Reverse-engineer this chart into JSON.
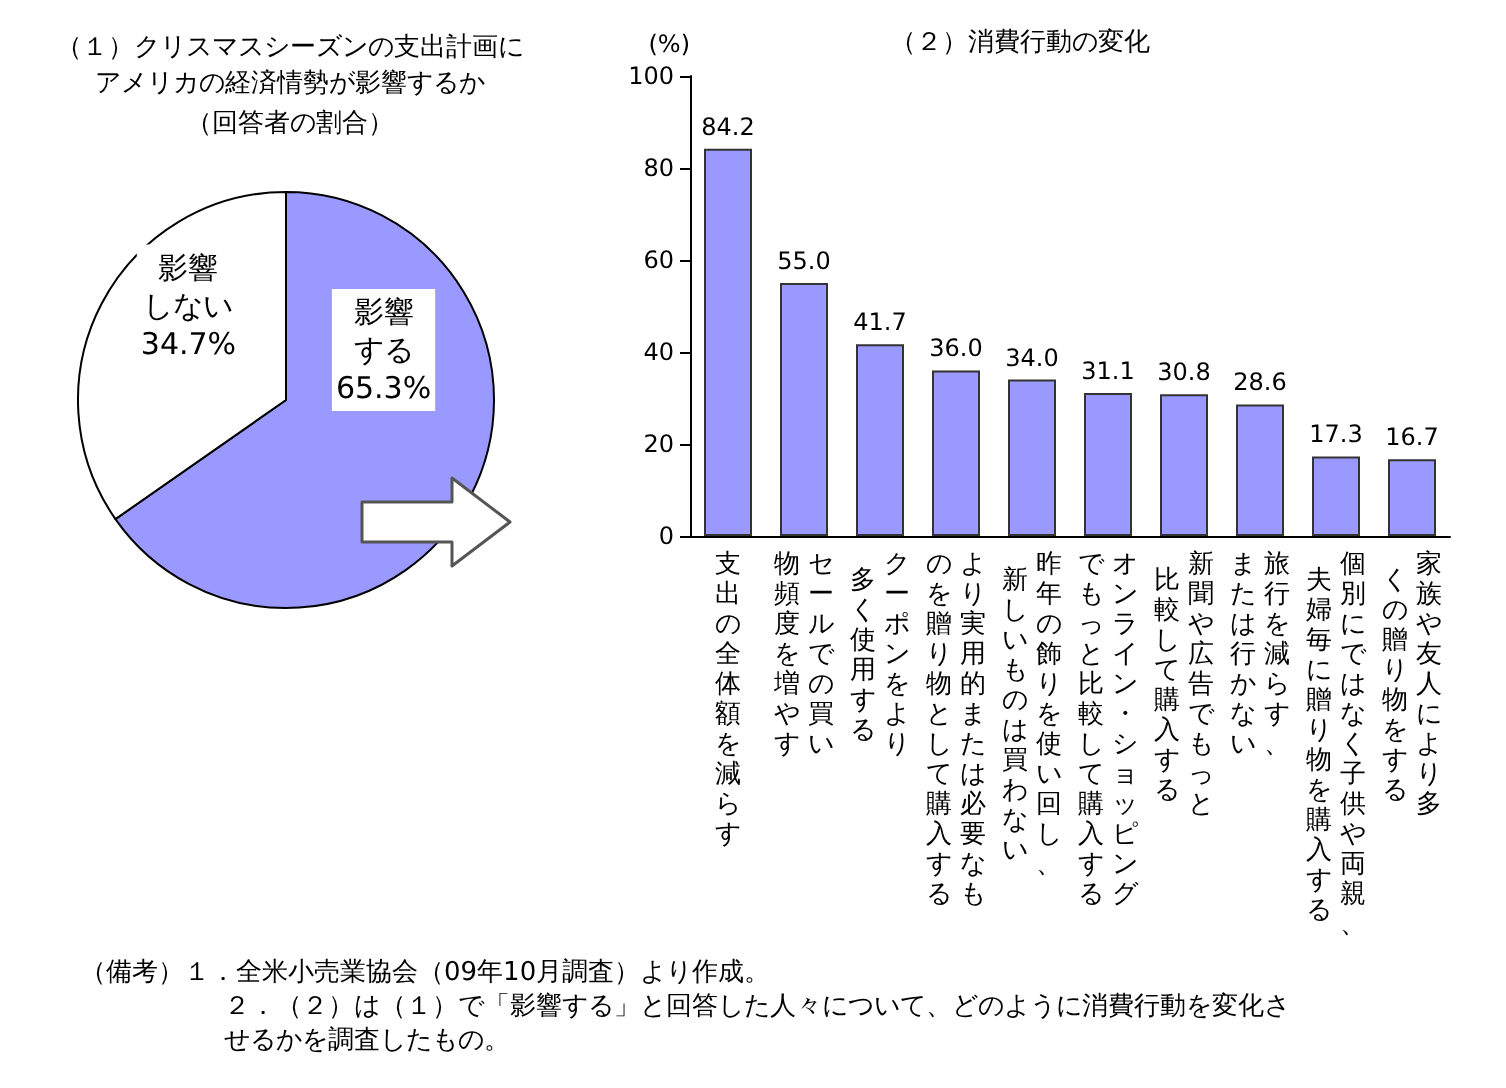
{
  "chart_data": [
    {
      "type": "pie",
      "title": "（１）クリスマスシーズンの支出計画にアメリカの経済情勢が影響するか",
      "subtitle": "（回答者の割合）",
      "categories": [
        "影響する",
        "影響しない"
      ],
      "values": [
        65.3,
        34.7
      ],
      "value_labels": [
        "65.3%",
        "34.7%"
      ],
      "colors": [
        "#9999ff",
        "#ffffff"
      ]
    },
    {
      "type": "bar",
      "title": "（２）消費行動の変化",
      "ylabel": "(%)",
      "categories": [
        "支出の全体額を減らす",
        "セールでの買い物頻度を増やす",
        "クーポンをより多く使用する",
        "より実用的または必要なものを贈り物として購入する",
        "昨年の飾りを使い回し、新しいものは買わない",
        "オンライン・ショッピングでもっと比較して購入する",
        "新聞や広告でもっと比較して購入する",
        "旅行を減らす、または行かない",
        "個別にではなく子供や両親、夫婦毎に贈り物を購入する",
        "家族や友人により多くの贈り物をする"
      ],
      "values": [
        84.2,
        55.0,
        41.7,
        36.0,
        34.0,
        31.1,
        30.8,
        28.6,
        17.3,
        16.7
      ],
      "value_labels": [
        "84.2",
        "55.0",
        "41.7",
        "36.0",
        "34.0",
        "31.1",
        "30.8",
        "28.6",
        "17.3",
        "16.7"
      ],
      "color": "#9999ff",
      "ylim": [
        0,
        100
      ],
      "yticks": [
        0,
        20,
        40,
        60,
        80,
        100
      ],
      "grid": false,
      "annotations": [
        "（備考）１．全米小売業協会（09年10月調査）より作成。",
        "２．（２）は（１）で「影響する」と回答した人々について、どのように消費行動を変化させるかを調査したもの。"
      ]
    }
  ]
}
